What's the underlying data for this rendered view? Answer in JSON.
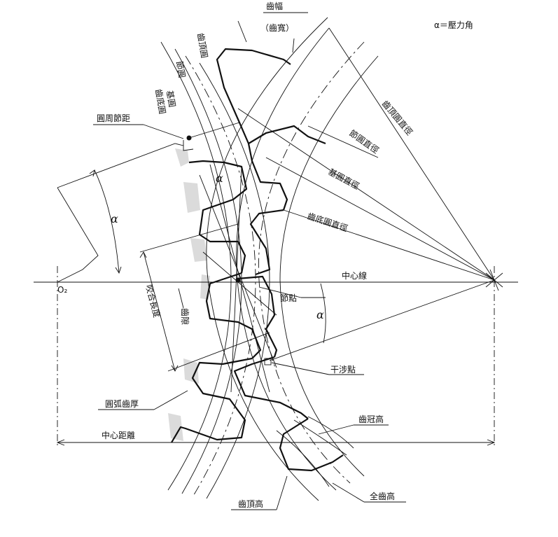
{
  "legend": "α＝壓力角",
  "labels": {
    "tooth_width": "齒幅",
    "tooth_face_width": "（齒寬）",
    "addendum_circle": "齒頂圓",
    "pitch_circle": "節圓",
    "base_circle": "基圓",
    "dedendum_circle": "齒底圓",
    "circular_pitch": "圓周節距",
    "addendum_circle_diameter": "齒頂圓直徑",
    "pitch_circle_diameter": "節圓直徑",
    "base_circle_diameter": "基圓直徑",
    "dedendum_circle_diameter": "齒底圓直徑",
    "center_line": "中心線",
    "pitch_point": "節點",
    "interference_point": "干涉點",
    "contact_length": "咬合長度",
    "backlash": "齒隙",
    "circular_thickness": "圓弧齒厚",
    "addendum": "齒冠高",
    "center_distance": "中心距離",
    "whole_depth": "全齒高",
    "dedendum": "齒頂高",
    "center_o2": "O₂",
    "alpha": "α"
  }
}
